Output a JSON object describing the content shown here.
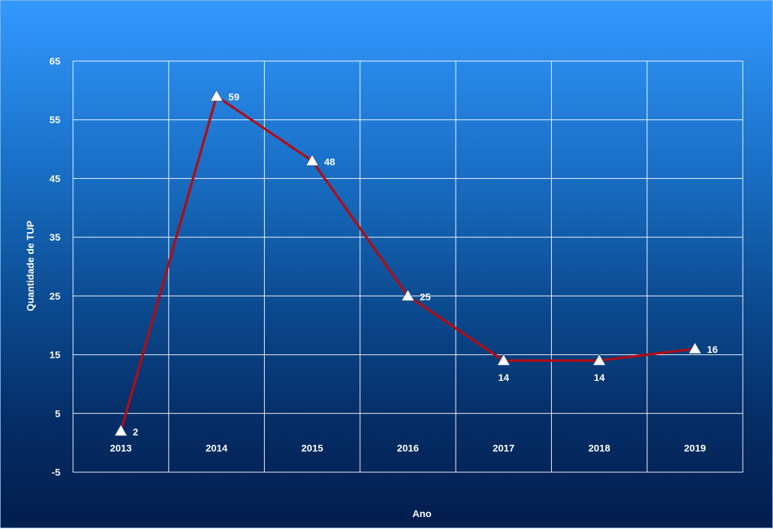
{
  "chart_data": {
    "type": "line",
    "title": "",
    "xlabel": "Ano",
    "ylabel": "Quantidade de TUP",
    "categories": [
      "2013",
      "2014",
      "2015",
      "2016",
      "2017",
      "2018",
      "2019"
    ],
    "series": [
      {
        "values": [
          2,
          59,
          48,
          25,
          14,
          14,
          16
        ]
      }
    ],
    "data_labels": [
      "2",
      "59",
      "48",
      "25",
      "14",
      "14",
      "16"
    ],
    "ylim": [
      -5,
      65
    ],
    "yticks": [
      -5,
      5,
      15,
      25,
      35,
      45,
      55,
      65
    ],
    "ytick_labels": [
      "-5",
      "5",
      "15",
      "25",
      "35",
      "45",
      "55",
      "65"
    ],
    "grid": true,
    "legend": "none",
    "marker": "triangle",
    "colors": {
      "line": "#b00d14",
      "marker": "#ffffff",
      "grid": "#ffffff",
      "text": "#ffffff",
      "background_top": "#3399ff",
      "background_bottom": "#021d4c"
    }
  }
}
